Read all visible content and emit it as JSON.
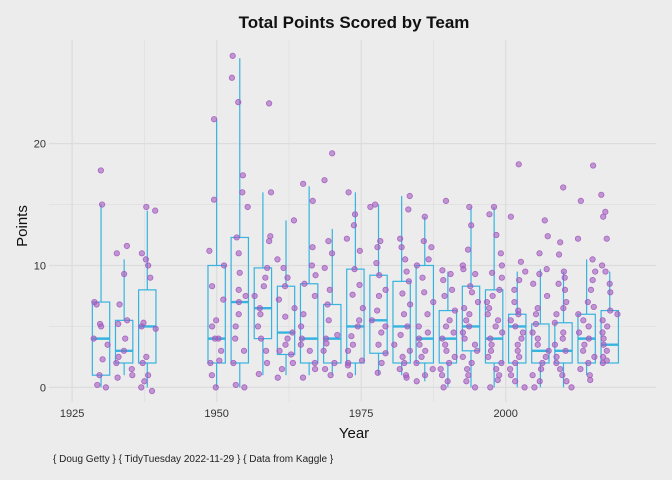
{
  "chart_data": {
    "type": "boxplot-with-jitter",
    "title": "Total Points Scored by Team",
    "xlabel": "Year",
    "ylabel": "Points",
    "caption": "{ Doug Getty } { TidyTuesday 2022-11-29 } { Data from Kaggle }",
    "xlim": [
      1921,
      2026
    ],
    "ylim": [
      -1.2,
      28.5
    ],
    "x_ticks": [
      1925,
      1950,
      1975,
      2000
    ],
    "y_ticks": [
      0,
      10,
      20
    ],
    "grid": true,
    "legend": "none",
    "colors": {
      "box": "#36b3df",
      "points": "#a35bbf",
      "background": "#ececec",
      "grid": "#dcdcdc"
    },
    "boxes": [
      {
        "year": 1930,
        "min": 0,
        "q1": 1,
        "median": 4,
        "q3": 7,
        "max": 15
      },
      {
        "year": 1934,
        "min": 1,
        "q1": 2,
        "median": 3,
        "q3": 5.5,
        "max": 10.5
      },
      {
        "year": 1938,
        "min": 0,
        "q1": 2,
        "median": 5,
        "q3": 8,
        "max": 14.5
      },
      {
        "year": 1950,
        "min": 0,
        "q1": 2,
        "median": 4,
        "q3": 10,
        "max": 22
      },
      {
        "year": 1954,
        "min": 0,
        "q1": 2,
        "median": 7,
        "q3": 12.3,
        "max": 27
      },
      {
        "year": 1958,
        "min": 1,
        "q1": 4,
        "median": 6.5,
        "q3": 9.8,
        "max": 16
      },
      {
        "year": 1962,
        "min": 1,
        "q1": 2.7,
        "median": 4.5,
        "q3": 8.3,
        "max": 13.7
      },
      {
        "year": 1966,
        "min": 1,
        "q1": 2,
        "median": 4,
        "q3": 8.5,
        "max": 16.5
      },
      {
        "year": 1970,
        "min": 1,
        "q1": 2,
        "median": 4,
        "q3": 6.8,
        "max": 13
      },
      {
        "year": 1974,
        "min": 1,
        "q1": 2,
        "median": 5,
        "q3": 9.7,
        "max": 16
      },
      {
        "year": 1978,
        "min": 1,
        "q1": 2.8,
        "median": 5.5,
        "q3": 9.2,
        "max": 15
      },
      {
        "year": 1982,
        "min": 1,
        "q1": 2,
        "median": 5,
        "q3": 8.7,
        "max": 15.7
      },
      {
        "year": 1986,
        "min": 0.5,
        "q1": 2,
        "median": 4,
        "q3": 10,
        "max": 14
      },
      {
        "year": 1990,
        "min": 0,
        "q1": 2,
        "median": 4,
        "q3": 6.3,
        "max": 9.5
      },
      {
        "year": 1994,
        "min": 0,
        "q1": 3,
        "median": 5,
        "q3": 8.3,
        "max": 14.8
      },
      {
        "year": 1998,
        "min": 0,
        "q1": 2,
        "median": 4,
        "q3": 8,
        "max": 14.8
      },
      {
        "year": 2002,
        "min": 0,
        "q1": 2,
        "median": 5,
        "q3": 6,
        "max": 9.5
      },
      {
        "year": 2006,
        "min": 0,
        "q1": 2,
        "median": 3,
        "q3": 5.2,
        "max": 9.7
      },
      {
        "year": 2010,
        "min": 0,
        "q1": 2,
        "median": 3,
        "q3": 5.3,
        "max": 9.5
      },
      {
        "year": 2014,
        "min": 1,
        "q1": 2,
        "median": 4,
        "q3": 6,
        "max": 10.5
      },
      {
        "year": 2018,
        "min": 2,
        "q1": 2,
        "median": 3.5,
        "q3": 6.3,
        "max": 9.5
      }
    ],
    "points": [
      {
        "year": 1930,
        "values": [
          17.8,
          15,
          7,
          6.8,
          5.2,
          5,
          4,
          3.5,
          2.3,
          1,
          0.2,
          0
        ]
      },
      {
        "year": 1934,
        "values": [
          11.6,
          11,
          9.3,
          6.8,
          5.5,
          5.2,
          4,
          3,
          2.5,
          2,
          1.5,
          1,
          0.8
        ]
      },
      {
        "year": 1938,
        "values": [
          14.8,
          14.5,
          11,
          10.5,
          10,
          9,
          5.3,
          5,
          4.8,
          2.5,
          2,
          1,
          0.5,
          0,
          -0.3
        ]
      },
      {
        "year": 1950,
        "values": [
          22,
          15.4,
          11.2,
          10,
          8.3,
          7.2,
          5.5,
          5,
          4,
          4,
          3,
          2.2,
          2,
          1,
          0
        ]
      },
      {
        "year": 1954,
        "values": [
          27.2,
          25.4,
          23.4,
          17.4,
          16,
          14.8,
          12.3,
          11,
          9.4,
          8,
          7.5,
          7,
          6,
          5,
          4,
          3,
          2,
          0.2,
          0
        ]
      },
      {
        "year": 1958,
        "values": [
          23.3,
          16,
          12.4,
          12,
          9.8,
          9,
          8.3,
          7.5,
          6.5,
          6,
          5,
          4,
          3,
          2,
          1.1
        ]
      },
      {
        "year": 1962,
        "values": [
          13.7,
          10.5,
          9.8,
          9,
          8.3,
          7.2,
          6.5,
          5.8,
          4.5,
          4,
          3.5,
          3,
          2.7,
          2,
          1.5,
          0.8
        ]
      },
      {
        "year": 1966,
        "values": [
          16.7,
          15.3,
          11.5,
          10,
          9.2,
          8.5,
          7.5,
          6,
          5,
          4,
          3.5,
          3,
          2,
          1.5,
          0.8
        ]
      },
      {
        "year": 1970,
        "values": [
          19.2,
          17,
          12,
          11,
          9.8,
          8,
          6.8,
          5.5,
          4.3,
          4,
          3.6,
          3,
          2,
          1.5,
          1
        ]
      },
      {
        "year": 1974,
        "values": [
          16,
          14.2,
          13.3,
          12.2,
          11.2,
          9.7,
          8.4,
          7.6,
          6.5,
          5.5,
          5,
          4.2,
          3.5,
          3,
          2.2,
          2,
          1.8,
          1
        ]
      },
      {
        "year": 1978,
        "values": [
          15,
          14.8,
          12,
          11.5,
          10.2,
          9.2,
          8,
          7.5,
          6.3,
          5.5,
          5,
          4.5,
          3.5,
          2.8,
          2,
          1.2
        ]
      },
      {
        "year": 1982,
        "values": [
          15.7,
          14.6,
          12.2,
          11.5,
          10.5,
          9.5,
          8.7,
          7.7,
          6.8,
          6,
          5,
          4.3,
          3.5,
          3,
          2.5,
          2,
          1.5,
          1,
          0.8
        ]
      },
      {
        "year": 1986,
        "values": [
          14,
          12,
          11.5,
          10.5,
          10,
          9,
          7.8,
          7,
          6,
          5,
          4.5,
          4,
          3.5,
          3,
          2.5,
          2,
          1.5,
          1,
          0.5
        ]
      },
      {
        "year": 1990,
        "values": [
          15.3,
          9.6,
          9.3,
          8.8,
          8,
          7.5,
          6.3,
          5.5,
          5,
          4.5,
          4,
          3.5,
          3,
          2.5,
          2,
          1.5,
          1,
          0.5,
          0
        ]
      },
      {
        "year": 1994,
        "values": [
          14.8,
          13.3,
          11.3,
          10,
          9.7,
          9.3,
          8.3,
          7.8,
          7,
          6.5,
          6,
          5.5,
          5,
          4.5,
          4,
          3.5,
          3,
          2.5,
          2,
          1.5,
          1,
          0.5,
          0
        ]
      },
      {
        "year": 1998,
        "values": [
          14.8,
          14.2,
          12.5,
          11,
          10,
          9.4,
          9,
          8,
          7.5,
          7,
          6.5,
          6,
          5.5,
          5,
          4.5,
          4,
          3.5,
          3,
          2.5,
          2,
          1.5,
          1,
          0.6,
          0
        ]
      },
      {
        "year": 2002,
        "values": [
          18.3,
          14,
          10.3,
          9.5,
          8.8,
          8,
          7,
          6.3,
          6,
          5.5,
          5,
          4.5,
          4,
          3.5,
          3,
          2.5,
          2,
          1.5,
          1,
          0.5,
          0
        ]
      },
      {
        "year": 2006,
        "values": [
          13.7,
          12.4,
          11,
          9.7,
          9.3,
          8.5,
          7.5,
          6.5,
          6,
          5.2,
          4.5,
          4,
          3.5,
          3,
          2.5,
          2,
          1.5,
          1,
          0.5,
          0
        ]
      },
      {
        "year": 2010,
        "values": [
          16.4,
          11.9,
          10.9,
          9.5,
          9,
          8.5,
          8,
          7,
          6.5,
          6,
          5.3,
          4.5,
          4,
          3.5,
          3,
          2.5,
          2,
          1.5,
          1,
          0.5,
          0
        ]
      },
      {
        "year": 2014,
        "values": [
          18.2,
          15.3,
          12.2,
          10.5,
          9.5,
          8.8,
          8,
          7,
          6.6,
          6,
          5.5,
          5,
          4.5,
          4,
          3.5,
          3,
          2.5,
          2,
          1.5,
          1,
          0.6
        ]
      },
      {
        "year": 2018,
        "values": [
          15.8,
          14.4,
          14,
          12.2,
          10,
          9.5,
          8.5,
          7.8,
          6.3,
          6,
          5.5,
          5,
          4.5,
          4,
          3.5,
          3,
          2.5,
          2.2,
          2
        ]
      }
    ]
  }
}
